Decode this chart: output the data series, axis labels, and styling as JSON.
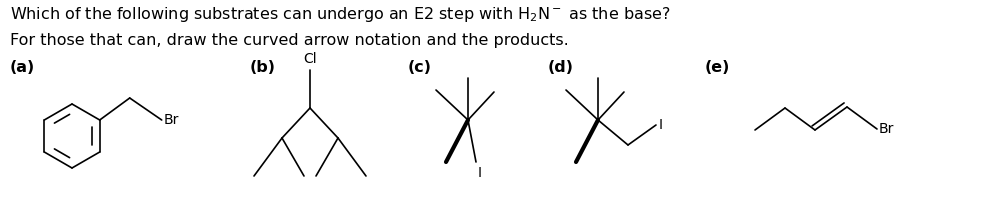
{
  "bg_color": "#ffffff",
  "text_color": "#000000",
  "font_size_title": 11.5,
  "font_size_labels": 11.5,
  "font_size_atom": 10,
  "labels": [
    "(a)",
    "(b)",
    "(c)",
    "(d)",
    "(e)"
  ]
}
